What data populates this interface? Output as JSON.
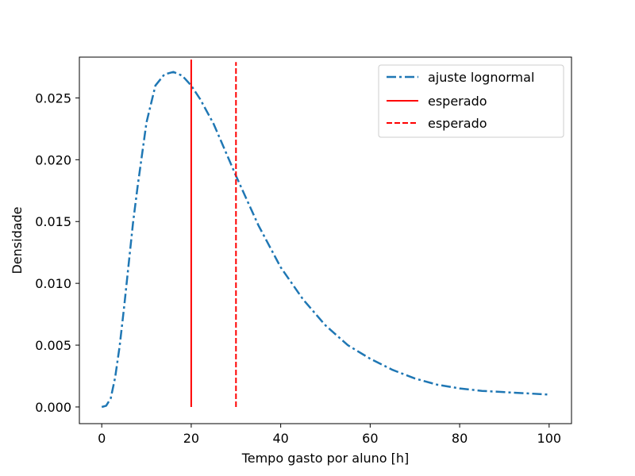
{
  "chart_data": {
    "type": "line",
    "xlabel": "Tempo gasto por aluno [h]",
    "ylabel": "Densidade",
    "xlim": [
      -5,
      105
    ],
    "ylim": [
      -0.00135,
      0.0283
    ],
    "x_ticks": [
      "0",
      "20",
      "40",
      "60",
      "80",
      "100"
    ],
    "y_ticks": [
      "0.000",
      "0.005",
      "0.010",
      "0.015",
      "0.020",
      "0.025"
    ],
    "grid": false,
    "legend_position": "top-right",
    "series": [
      {
        "name": "ajuste lognormal",
        "style": "dashdot",
        "color": "#1f77b4",
        "x": [
          0,
          1,
          2,
          3,
          4,
          5,
          6,
          7,
          8,
          10,
          12,
          14,
          16,
          18,
          20,
          22,
          25,
          30,
          35,
          40,
          45,
          50,
          55,
          60,
          65,
          70,
          75,
          80,
          85,
          90,
          95,
          100
        ],
        "y": [
          0.0,
          0.0001,
          0.0007,
          0.0024,
          0.0049,
          0.0081,
          0.0115,
          0.0149,
          0.0178,
          0.023,
          0.026,
          0.0269,
          0.0271,
          0.0268,
          0.026,
          0.0249,
          0.0229,
          0.0187,
          0.0147,
          0.0113,
          0.0087,
          0.0066,
          0.005,
          0.0039,
          0.003,
          0.0023,
          0.0018,
          0.0015,
          0.0013,
          0.0012,
          0.0011,
          0.001
        ]
      },
      {
        "name": "esperado",
        "style": "solid",
        "color": "#ff0000",
        "x": [
          20,
          20
        ],
        "y": [
          0.0,
          0.0281
        ]
      },
      {
        "name": "esperado",
        "style": "dashed",
        "color": "#ff0000",
        "x": [
          30,
          30
        ],
        "y": [
          0.0,
          0.0279
        ]
      }
    ]
  }
}
